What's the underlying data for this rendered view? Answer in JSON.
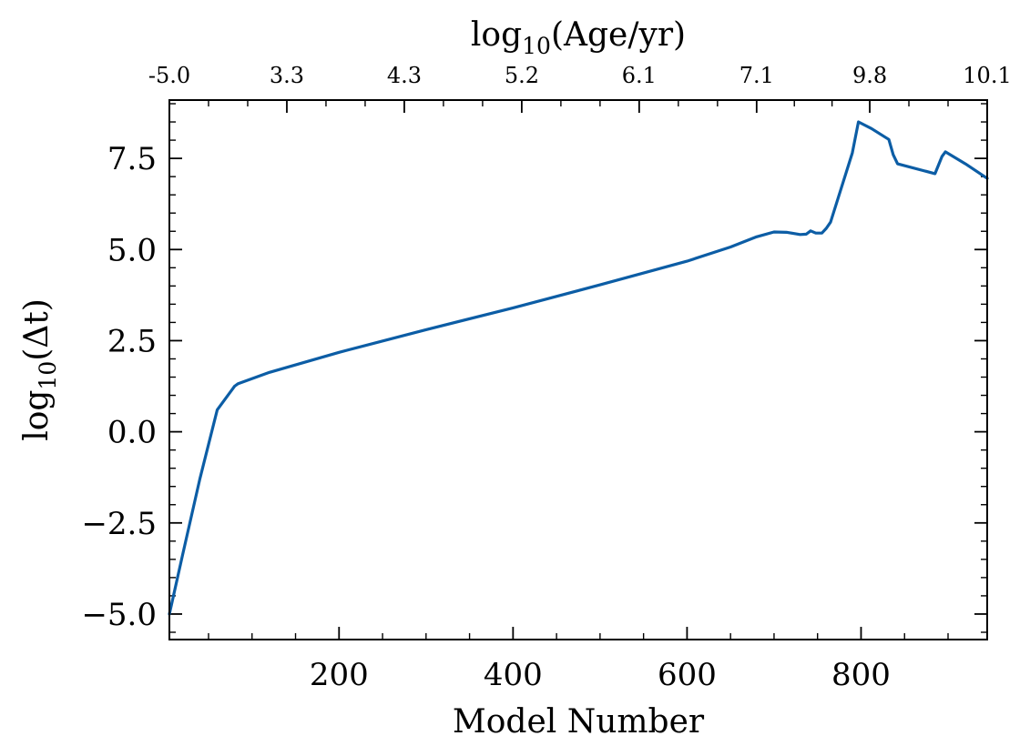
{
  "chart_data": {
    "type": "line",
    "xlabel": "Model Number",
    "ylabel_base": "log",
    "ylabel_sub": "10",
    "ylabel_arg": "(Δt)",
    "top_label_base": "log",
    "top_label_sub": "10",
    "top_label_arg": "(Age/yr)",
    "xlim": [
      5,
      945
    ],
    "ylim": [
      -5.7,
      9.1
    ],
    "x_ticks": [
      200,
      400,
      600,
      800
    ],
    "x_tick_labels": [
      "200",
      "400",
      "600",
      "800"
    ],
    "y_ticks": [
      -5.0,
      -2.5,
      0.0,
      2.5,
      5.0,
      7.5
    ],
    "y_tick_labels": [
      "−5.0",
      "−2.5",
      "0.0",
      "2.5",
      "5.0",
      "7.5"
    ],
    "top_tick_positions": [
      5,
      140,
      275,
      410,
      545,
      680,
      810,
      945
    ],
    "top_tick_labels": [
      "-5.0",
      "3.3",
      "4.3",
      "5.2",
      "6.1",
      "7.1",
      "9.8",
      "10.1"
    ],
    "line_color": "#0c5da5",
    "series": [
      {
        "x": [
          5,
          20,
          40,
          60,
          80,
          84,
          120,
          200,
          300,
          400,
          500,
          600,
          650,
          680,
          700,
          715,
          730,
          737,
          742,
          748,
          755,
          760,
          765,
          790,
          797,
          812,
          832,
          837,
          842,
          885,
          893,
          897,
          920,
          945
        ],
        "y": [
          -5.0,
          -3.4,
          -1.3,
          0.6,
          1.25,
          1.32,
          1.63,
          2.18,
          2.8,
          3.4,
          4.03,
          4.68,
          5.07,
          5.35,
          5.48,
          5.47,
          5.41,
          5.42,
          5.51,
          5.45,
          5.45,
          5.58,
          5.75,
          7.65,
          8.5,
          8.32,
          8.02,
          7.6,
          7.35,
          7.08,
          7.55,
          7.68,
          7.35,
          6.95
        ]
      }
    ]
  }
}
